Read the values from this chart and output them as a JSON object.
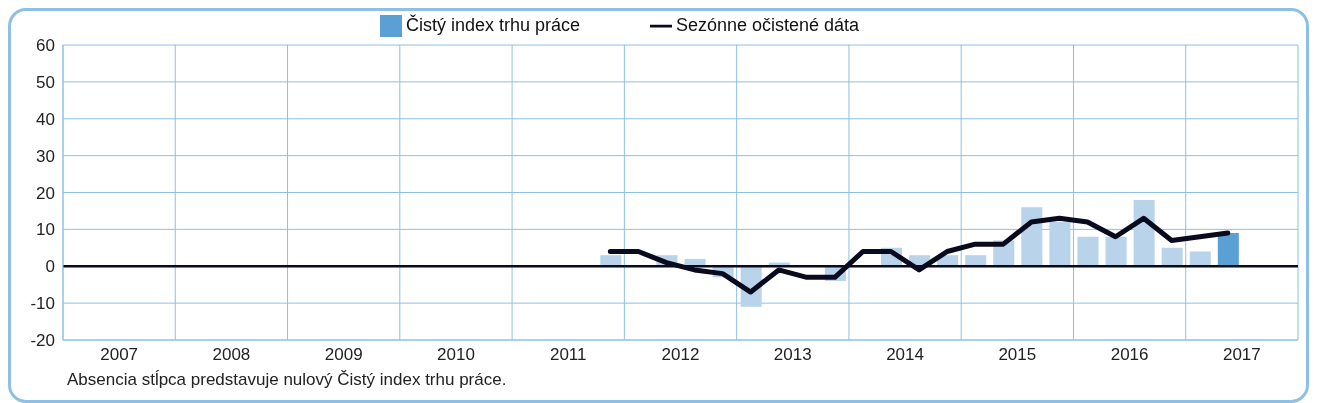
{
  "chart_data": {
    "type": "bar",
    "x": [
      2011.875,
      2012.125,
      2012.375,
      2012.625,
      2012.875,
      2013.125,
      2013.375,
      2013.625,
      2013.875,
      2014.125,
      2014.375,
      2014.625,
      2014.875,
      2015.125,
      2015.375,
      2015.625,
      2015.875,
      2016.125,
      2016.375,
      2016.625,
      2016.875,
      2017.125,
      2017.375
    ],
    "series": [
      {
        "name": "Čistý index trhu práce",
        "color": "#5aa0d4",
        "colors": [
          "#b8d3ea",
          "#b8d3ea",
          "#b8d3ea",
          "#b8d3ea",
          "#b8d3ea",
          "#b8d3ea",
          "#b8d3ea",
          "#b8d3ea",
          "#b8d3ea",
          "#b8d3ea",
          "#b8d3ea",
          "#b8d3ea",
          "#b8d3ea",
          "#b8d3ea",
          "#b8d3ea",
          "#b8d3ea",
          "#b8d3ea",
          "#b8d3ea",
          "#b8d3ea",
          "#b8d3ea",
          "#b8d3ea",
          "#b8d3ea",
          "#5aa0d4"
        ],
        "values": [
          3,
          0,
          3,
          2,
          -3,
          -11,
          1,
          0,
          -4,
          0,
          5,
          3,
          3,
          3,
          7,
          16,
          12,
          8,
          8,
          18,
          5,
          4,
          9
        ]
      },
      {
        "name": "Sezónne očistené dáta",
        "type": "line",
        "color": "#0a0a1e",
        "values": [
          4,
          4,
          1,
          -1,
          -2,
          -7,
          -1,
          -3,
          -3,
          4,
          4,
          -1,
          4,
          6,
          6,
          12,
          13,
          12,
          8,
          13,
          7,
          8,
          9
        ]
      }
    ],
    "xlim": [
      2007,
      2018
    ],
    "xticks": [
      {
        "value": 2007,
        "label": null
      },
      {
        "value": 2007.5,
        "label": "2007"
      },
      {
        "value": 2008,
        "label": null
      },
      {
        "value": 2008.5,
        "label": "2008"
      },
      {
        "value": 2009,
        "label": null
      },
      {
        "value": 2009.5,
        "label": "2009"
      },
      {
        "value": 2010,
        "label": null
      },
      {
        "value": 2010.5,
        "label": "2010"
      },
      {
        "value": 2011,
        "label": null
      },
      {
        "value": 2011.5,
        "label": "2011"
      },
      {
        "value": 2012,
        "label": null
      },
      {
        "value": 2012.5,
        "label": "2012"
      },
      {
        "value": 2013,
        "label": null
      },
      {
        "value": 2013.5,
        "label": "2013"
      },
      {
        "value": 2014,
        "label": null
      },
      {
        "value": 2014.5,
        "label": "2014"
      },
      {
        "value": 2015,
        "label": null
      },
      {
        "value": 2015.5,
        "label": "2015"
      },
      {
        "value": 2016,
        "label": null
      },
      {
        "value": 2016.5,
        "label": "2016"
      },
      {
        "value": 2017,
        "label": null
      },
      {
        "value": 2017.5,
        "label": "2017"
      },
      {
        "value": 2018,
        "label": null
      }
    ],
    "ylim": [
      -20,
      60
    ],
    "yticks": [
      -20,
      -10,
      0,
      10,
      20,
      30,
      40,
      50,
      60
    ],
    "grid": true,
    "legend": "top",
    "marker": "none",
    "line_style": "solid",
    "ref_lines": [
      {
        "axis": "y",
        "value": 0,
        "color": "#0a0a1e"
      }
    ],
    "annotations": [
      "Absencia stĺpca predstavuje nulový Čistý index trhu práce."
    ]
  }
}
